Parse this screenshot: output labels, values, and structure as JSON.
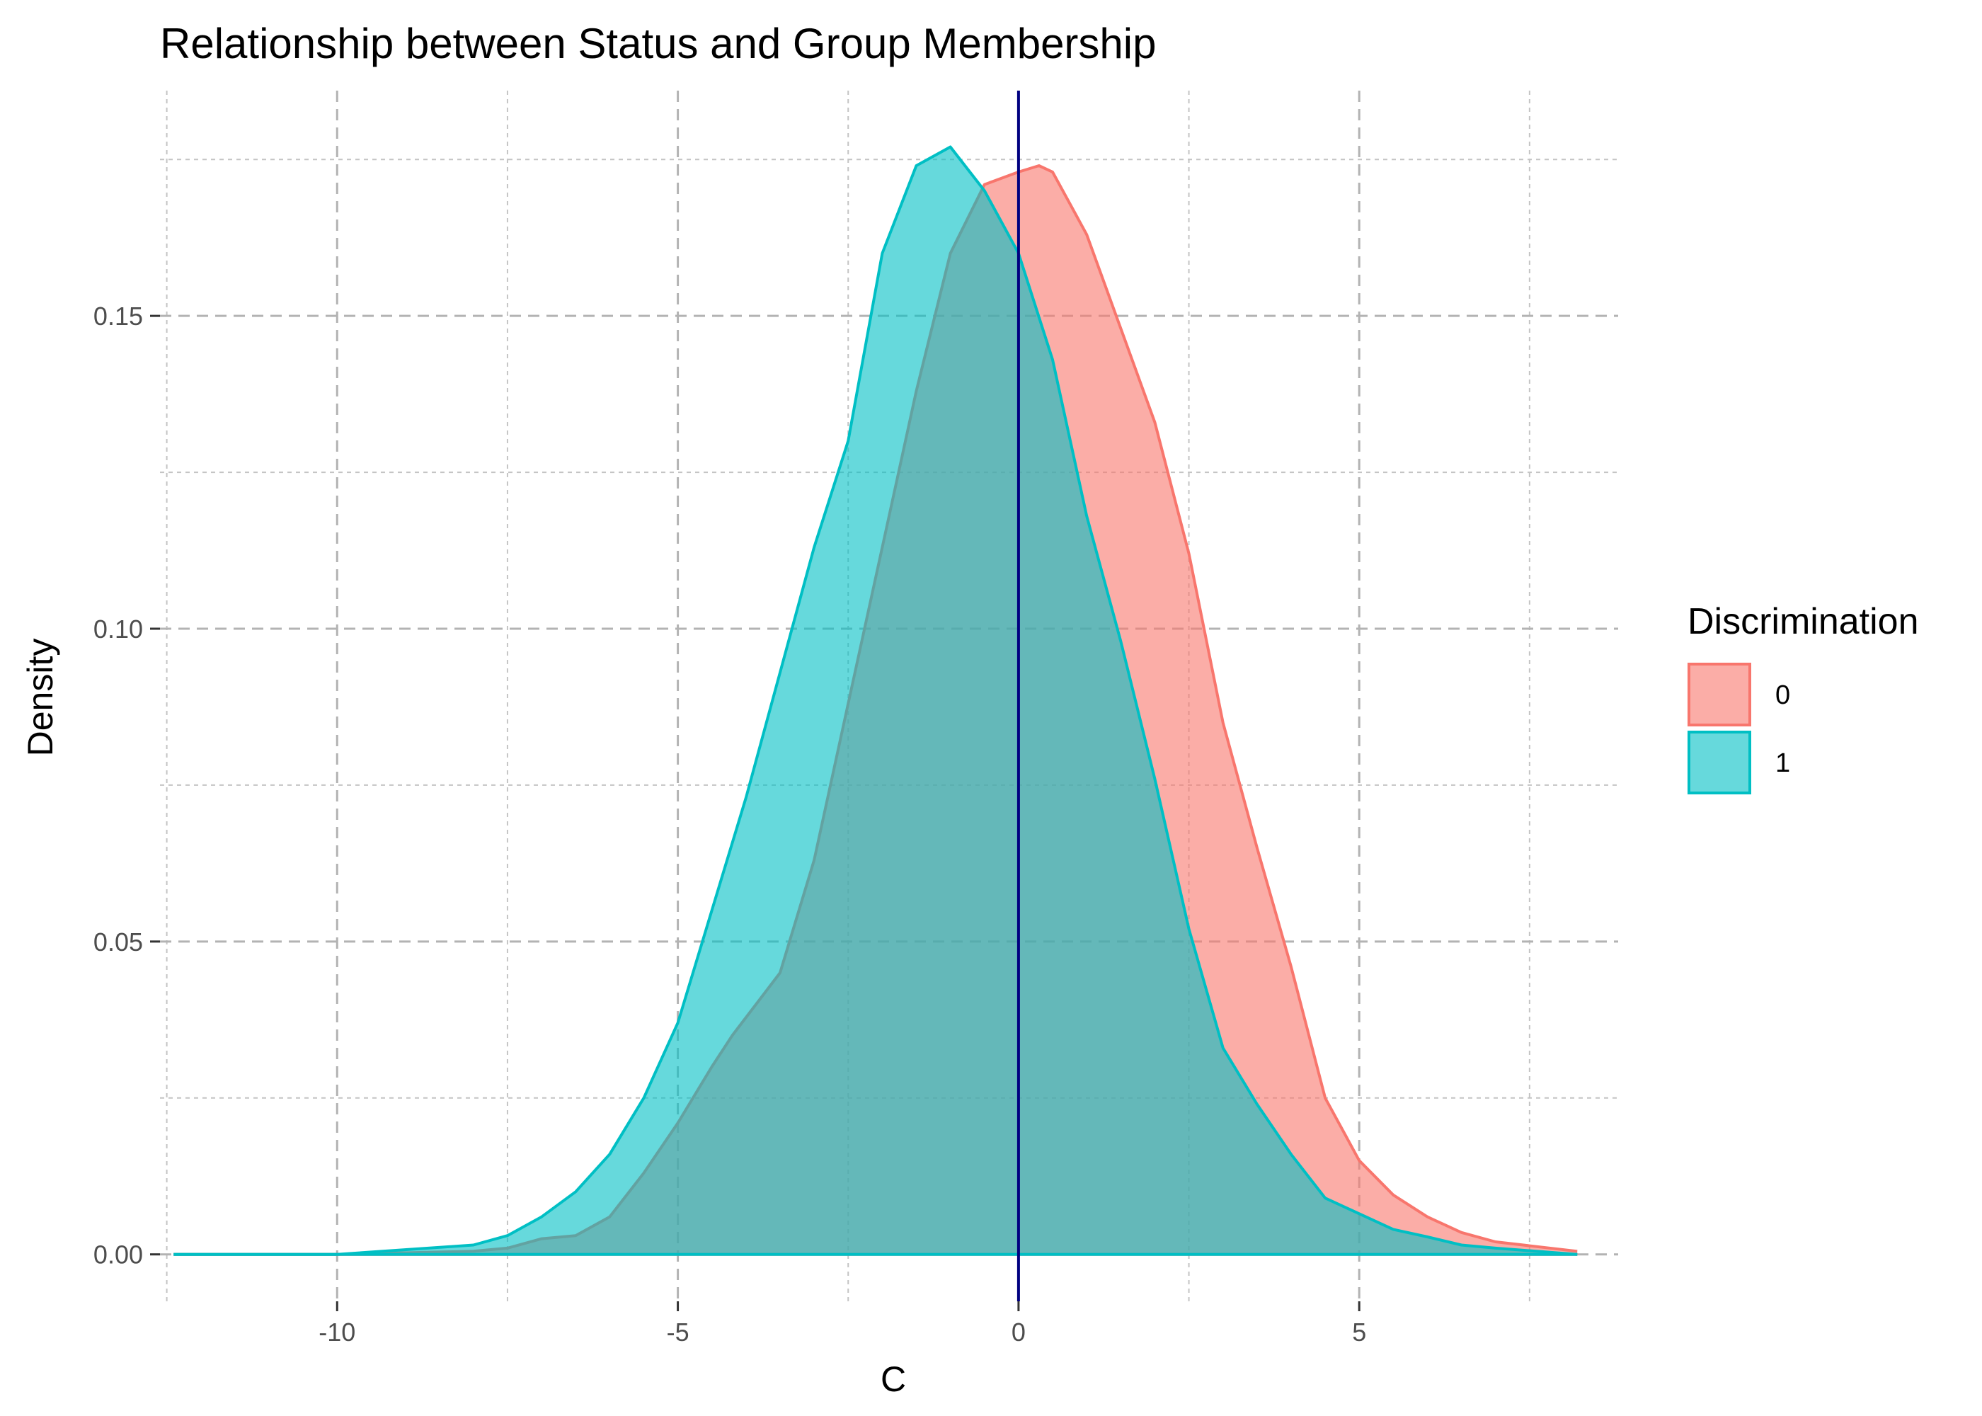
{
  "chart_data": {
    "type": "area",
    "title": "Relationship between Status and Group Membership",
    "xlabel": "C",
    "ylabel": "Density",
    "xlim": [
      -12.6,
      8.8
    ],
    "ylim": [
      -0.0075,
      0.186
    ],
    "x_ticks": [
      -10,
      -5,
      0,
      5
    ],
    "x_tick_labels": [
      "-10",
      "-5",
      "0",
      "5"
    ],
    "y_ticks": [
      0.0,
      0.05,
      0.1,
      0.15
    ],
    "y_tick_labels": [
      "0.00",
      "0.05",
      "0.10",
      "0.15"
    ],
    "x_minor_ticks": [
      -12.5,
      -7.5,
      -2.5,
      2.5,
      7.5
    ],
    "y_minor_ticks": [
      0.025,
      0.075,
      0.125,
      0.175
    ],
    "grid": true,
    "legend": {
      "title": "Discrimination",
      "position": "right"
    },
    "vline": {
      "x": 0,
      "color": "#000080"
    },
    "series": [
      {
        "name": "0",
        "color": "#F8766D",
        "fill": "#F8766D",
        "x": [
          -12.4,
          -10,
          -8,
          -7.5,
          -7,
          -6.5,
          -6,
          -5.5,
          -5,
          -4.5,
          -4.2,
          -3.5,
          -3,
          -2.5,
          -2,
          -1.5,
          -1,
          -0.5,
          0,
          0.3,
          0.5,
          1,
          1.5,
          2,
          2.5,
          3,
          3.5,
          4,
          4.5,
          5,
          5.5,
          6,
          6.5,
          7,
          8.2
        ],
        "y": [
          0,
          0,
          0.0005,
          0.001,
          0.0025,
          0.003,
          0.006,
          0.013,
          0.021,
          0.03,
          0.035,
          0.045,
          0.063,
          0.088,
          0.113,
          0.138,
          0.16,
          0.171,
          0.173,
          0.174,
          0.173,
          0.163,
          0.148,
          0.133,
          0.112,
          0.085,
          0.065,
          0.046,
          0.025,
          0.015,
          0.0095,
          0.006,
          0.0035,
          0.002,
          0.0005
        ]
      },
      {
        "name": "1",
        "color": "#00BFC4",
        "fill": "#00BFC4",
        "x": [
          -12.4,
          -10,
          -8,
          -7.5,
          -7,
          -6.5,
          -6,
          -5.5,
          -5,
          -4.5,
          -4,
          -3.5,
          -3,
          -2.5,
          -2,
          -1.5,
          -1,
          -0.5,
          0,
          0.5,
          1,
          1.5,
          2,
          2.5,
          3,
          3.5,
          4,
          4.5,
          5,
          5.5,
          6,
          6.5,
          7,
          8.2
        ],
        "y": [
          0,
          0,
          0.0015,
          0.003,
          0.006,
          0.01,
          0.016,
          0.025,
          0.037,
          0.055,
          0.073,
          0.093,
          0.113,
          0.13,
          0.16,
          0.174,
          0.177,
          0.17,
          0.16,
          0.143,
          0.118,
          0.098,
          0.076,
          0.052,
          0.033,
          0.024,
          0.016,
          0.009,
          0.0065,
          0.004,
          0.0028,
          0.0015,
          0.001,
          0
        ]
      }
    ]
  }
}
